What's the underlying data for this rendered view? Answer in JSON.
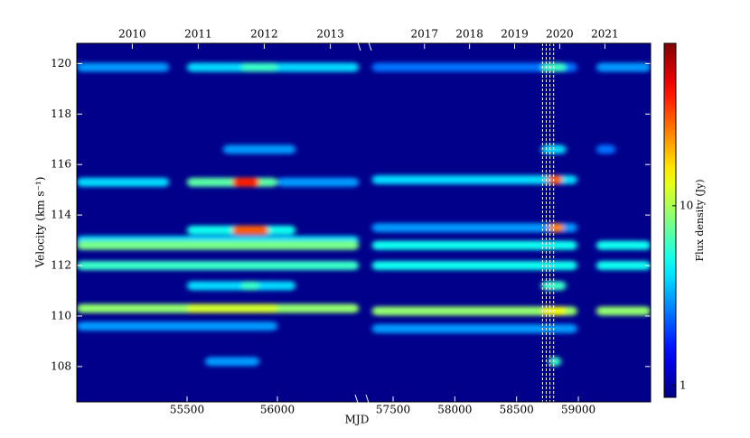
{
  "chart_data": {
    "type": "heatmap",
    "xlabel": "MJD",
    "ylabel": "Velocity (km s⁻¹)",
    "colorbar_label": "Flux density (Jy)",
    "colormap": "jet",
    "background": "#00008b",
    "log_color": true,
    "clim": [
      0.86,
      80
    ],
    "cticks": [
      1,
      10
    ],
    "ylim": [
      106.6,
      120.8
    ],
    "yticks": [
      108,
      110,
      112,
      114,
      116,
      118,
      120
    ],
    "segments": [
      {
        "xlim": [
          54890,
          56450
        ],
        "xticks": [
          55500,
          56000
        ],
        "top_ticks": [
          {
            "value": 55197,
            "label": "2010"
          },
          {
            "value": 55562,
            "label": "2011"
          },
          {
            "value": 55927,
            "label": "2012"
          },
          {
            "value": 56293,
            "label": "2013"
          }
        ]
      },
      {
        "xlim": [
          57295,
          59585
        ],
        "xticks": [
          57500,
          58000,
          58500,
          59000
        ],
        "top_ticks": [
          {
            "value": 57754,
            "label": "2017"
          },
          {
            "value": 58119,
            "label": "2018"
          },
          {
            "value": 58484,
            "label": "2019"
          },
          {
            "value": 58849,
            "label": "2020"
          },
          {
            "value": 59215,
            "label": "2021"
          }
        ]
      }
    ],
    "features": [
      {
        "velocity": 119.85,
        "start": 54890,
        "end": 55400,
        "flux": 3
      },
      {
        "velocity": 119.85,
        "start": 55500,
        "end": 56450,
        "flux": 4
      },
      {
        "velocity": 119.85,
        "start": 55800,
        "end": 56000,
        "flux": 6
      },
      {
        "velocity": 116.6,
        "start": 55700,
        "end": 56100,
        "flux": 3
      },
      {
        "velocity": 115.3,
        "start": 54890,
        "end": 55400,
        "flux": 4
      },
      {
        "velocity": 115.3,
        "start": 55500,
        "end": 56000,
        "flux": 7
      },
      {
        "velocity": 115.3,
        "start": 56000,
        "end": 56450,
        "flux": 3
      },
      {
        "velocity": 113.0,
        "start": 54890,
        "end": 56450,
        "flux": 4
      },
      {
        "velocity": 113.4,
        "start": 55500,
        "end": 56100,
        "flux": 5
      },
      {
        "velocity": 112.8,
        "start": 54890,
        "end": 56450,
        "flux": 8
      },
      {
        "velocity": 112.0,
        "start": 54890,
        "end": 56450,
        "flux": 6
      },
      {
        "velocity": 111.2,
        "start": 55500,
        "end": 56100,
        "flux": 4
      },
      {
        "velocity": 111.2,
        "start": 55800,
        "end": 55900,
        "flux": 6
      },
      {
        "velocity": 109.6,
        "start": 54890,
        "end": 56000,
        "flux": 3
      },
      {
        "velocity": 110.3,
        "start": 54890,
        "end": 56450,
        "flux": 9
      },
      {
        "velocity": 110.3,
        "start": 55500,
        "end": 56000,
        "flux": 12
      },
      {
        "velocity": 108.2,
        "start": 55600,
        "end": 55900,
        "flux": 3
      },
      {
        "velocity": 115.3,
        "start": 55750,
        "end": 55900,
        "flux": 40
      },
      {
        "velocity": 113.4,
        "start": 55750,
        "end": 55950,
        "flux": 30
      },
      {
        "velocity": 119.85,
        "start": 57330,
        "end": 58990,
        "flux": 2.5
      },
      {
        "velocity": 119.85,
        "start": 59146,
        "end": 59585,
        "flux": 3
      },
      {
        "velocity": 119.85,
        "start": 58700,
        "end": 58900,
        "flux": 6
      },
      {
        "velocity": 116.6,
        "start": 58700,
        "end": 58900,
        "flux": 4
      },
      {
        "velocity": 116.6,
        "start": 59146,
        "end": 59300,
        "flux": 2.5
      },
      {
        "velocity": 115.4,
        "start": 57330,
        "end": 58990,
        "flux": 4
      },
      {
        "velocity": 113.5,
        "start": 57330,
        "end": 58990,
        "flux": 3
      },
      {
        "velocity": 112.8,
        "start": 57330,
        "end": 58990,
        "flux": 5
      },
      {
        "velocity": 112.8,
        "start": 59146,
        "end": 59585,
        "flux": 5
      },
      {
        "velocity": 112.0,
        "start": 57330,
        "end": 58990,
        "flux": 5
      },
      {
        "velocity": 112.0,
        "start": 59146,
        "end": 59585,
        "flux": 5
      },
      {
        "velocity": 111.2,
        "start": 58700,
        "end": 58900,
        "flux": 6
      },
      {
        "velocity": 109.5,
        "start": 57330,
        "end": 58990,
        "flux": 3
      },
      {
        "velocity": 110.2,
        "start": 57330,
        "end": 58990,
        "flux": 9
      },
      {
        "velocity": 110.2,
        "start": 59146,
        "end": 59585,
        "flux": 9
      },
      {
        "velocity": 110.2,
        "start": 58700,
        "end": 58900,
        "flux": 14
      },
      {
        "velocity": 108.2,
        "start": 58760,
        "end": 58860,
        "flux": 6
      },
      {
        "velocity": 115.4,
        "start": 58750,
        "end": 58870,
        "flux": 30
      },
      {
        "velocity": 113.5,
        "start": 58760,
        "end": 58880,
        "flux": 25
      }
    ],
    "markers": [
      58710,
      58740,
      58770,
      58800
    ]
  }
}
